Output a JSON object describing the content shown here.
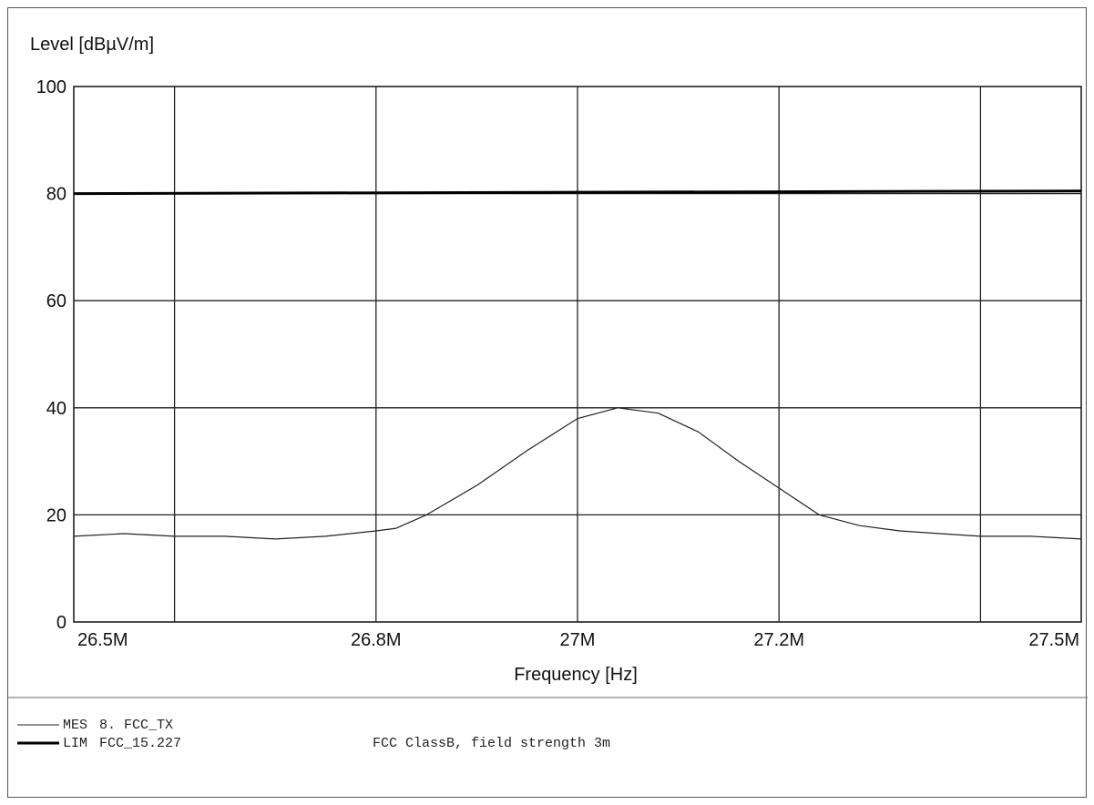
{
  "chart_data": {
    "type": "line",
    "ylabel": "Level [dBµV/m]",
    "xlabel": "Frequency [Hz]",
    "xlim": [
      26.5,
      27.5
    ],
    "ylim": [
      0,
      100
    ],
    "grid": true,
    "y_ticks": [
      0,
      20,
      40,
      60,
      80,
      100
    ],
    "x_ticks": [
      {
        "value": 26.5,
        "label": "26.5M"
      },
      {
        "value": 26.8,
        "label": "26.8M"
      },
      {
        "value": 27.0,
        "label": "27M"
      },
      {
        "value": 27.2,
        "label": "27.2M"
      },
      {
        "value": 27.5,
        "label": "27.5M"
      }
    ],
    "x_gridlines": [
      26.6,
      26.8,
      27.0,
      27.2,
      27.4
    ],
    "series": [
      {
        "name": "MES",
        "color": "#222222",
        "x": [
          26.5,
          26.55,
          26.6,
          26.65,
          26.7,
          26.75,
          26.8,
          26.82,
          26.85,
          26.9,
          26.95,
          27.0,
          27.04,
          27.08,
          27.12,
          27.16,
          27.2,
          27.24,
          27.28,
          27.32,
          27.36,
          27.4,
          27.45,
          27.5
        ],
        "y": [
          16,
          16.5,
          16,
          16,
          15.5,
          16,
          17,
          17.5,
          20,
          25.5,
          32,
          38,
          40,
          39,
          35.5,
          30,
          25,
          20,
          18,
          17,
          16.5,
          16,
          16,
          15.5
        ]
      },
      {
        "name": "LIM",
        "color": "#000000",
        "x": [
          26.5,
          27.5
        ],
        "y": [
          80,
          80.5
        ]
      }
    ]
  },
  "legend": {
    "rows": [
      {
        "code": "MES",
        "name": "8. FCC_TX",
        "desc": ""
      },
      {
        "code": "LIM",
        "name": "FCC_15.227",
        "desc": "FCC ClassB, field strength 3m"
      }
    ]
  }
}
